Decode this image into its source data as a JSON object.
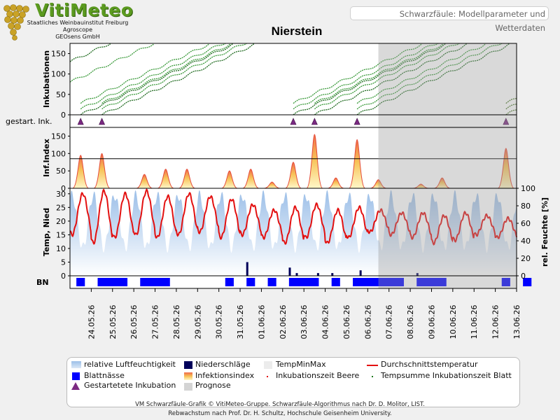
{
  "header": {
    "logo_text": "VitiMeteo",
    "logo_lines": [
      "Staatliches Weinbauinstitut Freiburg",
      "Agroscope",
      "GEOsens GmbH"
    ],
    "page_label": "Schwarzfäule: Modellparameter und Wetterdaten"
  },
  "colors": {
    "temp_red": "#e31010",
    "humidity_blue": "#a8c8ec",
    "rain_navy": "#00005a",
    "leaf_wet_blue": "#0000ff",
    "incubation_green": "#1f7a1f",
    "forecast_grey": "#d4d4d4",
    "triangle_purple": "#7b2a82"
  },
  "chart_data": {
    "type": "line",
    "title": "Nierstein",
    "x_dates": [
      "24.05.26",
      "25.05.26",
      "26.05.26",
      "27.05.26",
      "28.05.26",
      "29.05.26",
      "30.05.26",
      "31.05.26",
      "01.06.26",
      "02.06.26",
      "03.06.26",
      "04.06.26",
      "05.06.26",
      "06.06.26",
      "07.06.26",
      "08.06.26",
      "09.06.26",
      "10.06.26",
      "11.06.26",
      "12.06.26",
      "13.06.26"
    ],
    "x_range": [
      "23.05.26",
      "13.06.26"
    ],
    "forecast_start": "06.06.26 ~12:00",
    "panels": [
      {
        "name": "Inkubationen",
        "ylabel": "Inkubationen",
        "yticks": [
          0,
          50,
          100,
          150
        ],
        "ylim": [
          0,
          175
        ],
        "series_note": "Tempsumme Inkubationszeit Blatt / Inkubationszeit Beere lines rising ~1 unit/hour from each started incubation"
      },
      {
        "name": "gestart. Ink.",
        "ylabel": "gestart. Ink.",
        "markers_date": [
          "23.05.26",
          "24.05.26",
          "02.06.26",
          "03.06.26",
          "05.06.26",
          "12.06.26"
        ]
      },
      {
        "name": "Inf.Index",
        "ylabel": "Inf.Index",
        "yticks": [
          0,
          50,
          100,
          150
        ],
        "ylim": [
          0,
          175
        ],
        "threshold": 85,
        "peaks": [
          {
            "date": "23.05.26",
            "value": 95
          },
          {
            "date": "24.05.26",
            "value": 100
          },
          {
            "date": "26.05.26",
            "value": 40
          },
          {
            "date": "27.05.26",
            "value": 55
          },
          {
            "date": "28.05.26",
            "value": 55
          },
          {
            "date": "30.05.26",
            "value": 50
          },
          {
            "date": "31.05.26",
            "value": 55
          },
          {
            "date": "01.06.26",
            "value": 18
          },
          {
            "date": "02.06.26",
            "value": 75
          },
          {
            "date": "03.06.26",
            "value": 155
          },
          {
            "date": "04.06.26",
            "value": 30
          },
          {
            "date": "05.06.26",
            "value": 140
          },
          {
            "date": "06.06.26",
            "value": 25
          },
          {
            "date": "08.06.26",
            "value": 12
          },
          {
            "date": "09.06.26",
            "value": 30
          },
          {
            "date": "12.06.26",
            "value": 115
          }
        ]
      },
      {
        "name": "Temp, Nied",
        "ylabel": "Temp, Nied",
        "yticks": [
          0,
          5,
          10,
          15,
          20,
          25,
          30
        ],
        "ylim": [
          0,
          32
        ],
        "y2label": "rel. Feuchte [%]",
        "y2ticks": [
          0,
          20,
          40,
          60,
          80,
          100
        ],
        "y2lim": [
          0,
          100
        ],
        "temperature_daily_min_max": [
          [
            15,
            30
          ],
          [
            12,
            31
          ],
          [
            14,
            30
          ],
          [
            15,
            31
          ],
          [
            14,
            29
          ],
          [
            15,
            30
          ],
          [
            16,
            29
          ],
          [
            14,
            28
          ],
          [
            15,
            26
          ],
          [
            14,
            24
          ],
          [
            12,
            25
          ],
          [
            14,
            26
          ],
          [
            12,
            24
          ],
          [
            14,
            25
          ],
          [
            16,
            24
          ],
          [
            15,
            23
          ],
          [
            14,
            23
          ],
          [
            12,
            22
          ],
          [
            13,
            23
          ],
          [
            15,
            22
          ],
          [
            14,
            21
          ]
        ],
        "precipitation": [
          {
            "date": "31.05.26",
            "value": 5
          },
          {
            "date": "02.06.26",
            "value": 1
          },
          {
            "date": "02.06.26",
            "value": 3
          },
          {
            "date": "03.06.26",
            "value": 1
          },
          {
            "date": "04.06.26",
            "value": 1
          },
          {
            "date": "05.06.26",
            "value": 2
          },
          {
            "date": "08.06.26",
            "value": 1
          }
        ]
      },
      {
        "name": "BN",
        "ylabel": "BN",
        "leaf_wetness_blocks_date": [
          [
            "23.05.26",
            "23.05.26"
          ],
          [
            "24.05.26",
            "25.05.26"
          ],
          [
            "25.05.26",
            "25.05.26"
          ],
          [
            "26.05.26",
            "27.05.26"
          ],
          [
            "30.05.26",
            "30.05.26"
          ],
          [
            "31.05.26",
            "31.05.26"
          ],
          [
            "01.06.26",
            "01.06.26"
          ],
          [
            "02.06.26",
            "02.06.26"
          ],
          [
            "02.06.26",
            "03.06.26"
          ],
          [
            "04.06.26",
            "04.06.26"
          ],
          [
            "05.06.26",
            "06.06.26"
          ],
          [
            "06.06.26",
            "07.06.26"
          ],
          [
            "08.06.26",
            "09.06.26"
          ],
          [
            "12.06.26",
            "12.06.26"
          ],
          [
            "13.06.26",
            "13.06.26"
          ]
        ]
      }
    ]
  },
  "legend": {
    "items": [
      {
        "label": "relative Luftfeuchtigkeit",
        "symbol": "humidity"
      },
      {
        "label": "Niederschläge",
        "symbol": "rain"
      },
      {
        "label": "TempMinMax",
        "symbol": "tempminmax"
      },
      {
        "label": "Durchschnittstemperatur",
        "symbol": "temp"
      },
      {
        "label": "Blattnässe",
        "symbol": "leafwet"
      },
      {
        "label": "Infektionsindex",
        "symbol": "infindex"
      },
      {
        "label": "Inkubationszeit Beere",
        "symbol": "dotred"
      },
      {
        "label": "Tempsumme Inkubationszeit Blatt",
        "symbol": "dotgreen"
      },
      {
        "label": "Gestartetete Inkubation",
        "symbol": "triangle"
      },
      {
        "label": "Prognose",
        "symbol": "prognose"
      }
    ]
  },
  "footer": {
    "line1": "VM Schwarzfäule-Grafik © VitiMeteo-Gruppe. Schwarzfäule-Algorithmus nach Dr. D. Molitor, LIST.",
    "line2": "Rebwachstum nach Prof. Dr. H. Schultz, Hochschule Geisenheim University."
  }
}
